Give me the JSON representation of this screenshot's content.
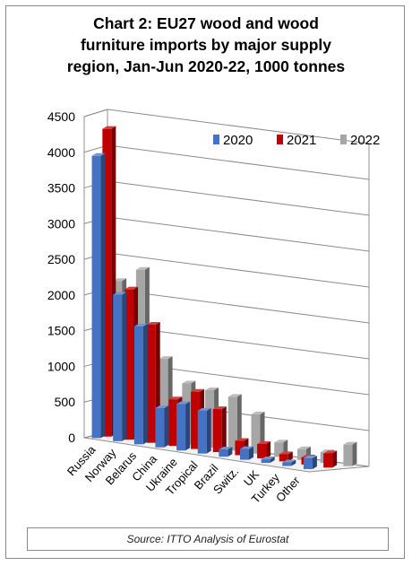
{
  "chart_data": {
    "type": "bar",
    "title_lines": [
      "Chart 2: EU27 wood and wood",
      "furniture imports by major supply",
      "region, Jan-Jun 2020-22, 1000 tonnes"
    ],
    "categories": [
      "Russia",
      "Norway",
      "Belarus",
      "China",
      "Ukraine",
      "Tropical",
      "Brazil",
      "Switz.",
      "UK",
      "Turkey",
      "Other"
    ],
    "series": [
      {
        "name": "2020",
        "color": "#4472c4",
        "values": [
          3950,
          2050,
          1650,
          550,
          650,
          600,
          100,
          150,
          50,
          50,
          150
        ]
      },
      {
        "name": "2021",
        "color": "#c00000",
        "values": [
          4300,
          2100,
          1650,
          650,
          800,
          600,
          200,
          200,
          100,
          100,
          200
        ]
      },
      {
        "name": "2022",
        "color": "#a6a6a6",
        "values": [
          2150,
          2350,
          1150,
          850,
          800,
          750,
          550,
          200,
          150,
          150,
          300
        ]
      }
    ],
    "yticks": [
      "0",
      "500",
      "1000",
      "1500",
      "2000",
      "2500",
      "3000",
      "3500",
      "4000",
      "4500"
    ],
    "ylim": [
      0,
      4500
    ],
    "legend_position": "top-right",
    "grid": true,
    "source": "Source: ITTO Analysis of Eurostat"
  }
}
